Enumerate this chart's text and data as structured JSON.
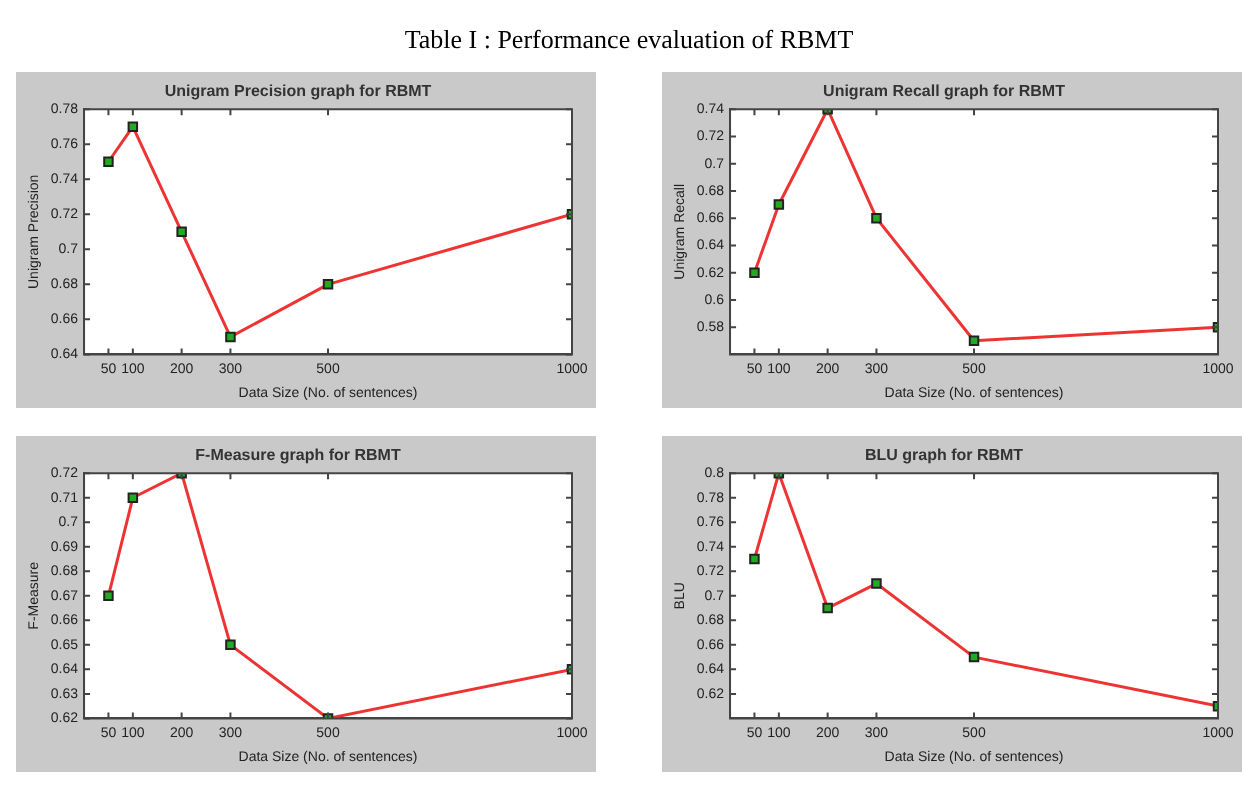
{
  "chart_data": [
    {
      "type": "line",
      "title": "Unigram Precision graph for RBMT",
      "xlabel": "Data Size (No. of sentences)",
      "ylabel": "Unigram Precision",
      "annotations": [
        "Table I : Performance evaluation of RBMT"
      ],
      "x": [
        50,
        100,
        200,
        300,
        500,
        1000
      ],
      "xlim": [
        0,
        1000
      ],
      "xticks": [
        50,
        100,
        200,
        300,
        500,
        1000
      ],
      "ylim": [
        0.64,
        0.78
      ],
      "yticks": [
        0.64,
        0.66,
        0.68,
        0.7,
        0.72,
        0.74,
        0.76,
        0.78
      ],
      "marker": "square",
      "grid": false,
      "legend": false,
      "series": [
        {
          "color": "#ee3333",
          "colors": [
            "#22aa22",
            "#22aa22",
            "#22aa22",
            "#22aa22",
            "#22aa22",
            "#22aa22"
          ],
          "values": [
            0.75,
            0.77,
            0.71,
            0.65,
            0.68,
            0.72
          ]
        }
      ]
    },
    {
      "type": "line",
      "title": "Unigram Recall graph for RBMT",
      "xlabel": "Data Size (No. of sentences)",
      "ylabel": "Unigram Recall",
      "x": [
        50,
        100,
        200,
        300,
        500,
        1000
      ],
      "xlim": [
        0,
        1000
      ],
      "xticks": [
        50,
        100,
        200,
        300,
        500,
        1000
      ],
      "ylim": [
        0.56,
        0.74
      ],
      "yticks": [
        0.58,
        0.6,
        0.62,
        0.64,
        0.66,
        0.68,
        0.7,
        0.72,
        0.74
      ],
      "marker": "square",
      "grid": false,
      "legend": false,
      "series": [
        {
          "color": "#ee3333",
          "colors": [
            "#22aa22",
            "#22aa22",
            "#22aa22",
            "#22aa22",
            "#22aa22",
            "#22aa22"
          ],
          "values": [
            0.62,
            0.67,
            0.74,
            0.66,
            0.57,
            0.58
          ]
        }
      ]
    },
    {
      "type": "line",
      "title": "F-Measure graph for RBMT",
      "xlabel": "Data Size (No. of sentences)",
      "ylabel": "F-Measure",
      "x": [
        50,
        100,
        200,
        300,
        500,
        1000
      ],
      "xlim": [
        0,
        1000
      ],
      "xticks": [
        50,
        100,
        200,
        300,
        500,
        1000
      ],
      "ylim": [
        0.62,
        0.72
      ],
      "yticks": [
        0.62,
        0.63,
        0.64,
        0.65,
        0.66,
        0.67,
        0.68,
        0.69,
        0.7,
        0.71,
        0.72
      ],
      "marker": "square",
      "grid": false,
      "legend": false,
      "series": [
        {
          "color": "#ee3333",
          "colors": [
            "#22aa22",
            "#22aa22",
            "#22aa22",
            "#22aa22",
            "#22aa22",
            "#22aa22"
          ],
          "values": [
            0.67,
            0.71,
            0.72,
            0.65,
            0.62,
            0.64
          ]
        }
      ]
    },
    {
      "type": "line",
      "title": "BLU graph for RBMT",
      "xlabel": "Data Size (No. of sentences)",
      "ylabel": "BLU",
      "x": [
        50,
        100,
        200,
        300,
        500,
        1000
      ],
      "xlim": [
        0,
        1000
      ],
      "xticks": [
        50,
        100,
        200,
        300,
        500,
        1000
      ],
      "ylim": [
        0.6,
        0.8
      ],
      "yticks": [
        0.62,
        0.64,
        0.66,
        0.68,
        0.7,
        0.72,
        0.74,
        0.76,
        0.78,
        0.8
      ],
      "marker": "square",
      "grid": false,
      "legend": false,
      "series": [
        {
          "color": "#ee3333",
          "colors": [
            "#22aa22",
            "#22aa22",
            "#22aa22",
            "#22aa22",
            "#22aa22",
            "#22aa22"
          ],
          "values": [
            0.73,
            0.8,
            0.69,
            0.71,
            0.65,
            0.61
          ]
        }
      ]
    }
  ]
}
